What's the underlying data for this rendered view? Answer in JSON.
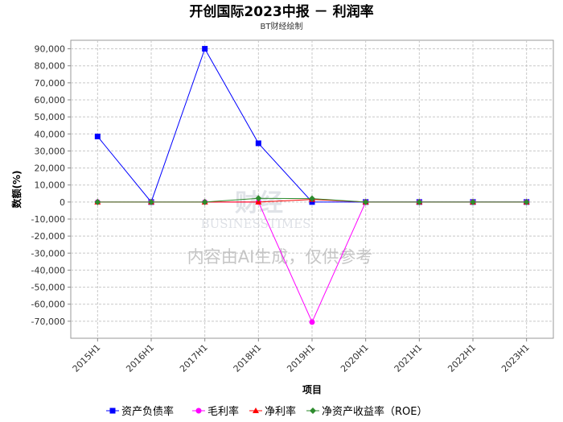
{
  "chart_data": {
    "type": "line",
    "title": "开创国际2023中报 － 利润率",
    "subtitle": "BT财经绘制",
    "xlabel": "项目",
    "ylabel": "数额(%)",
    "categories": [
      "2015H1",
      "2016H1",
      "2017H1",
      "2018H1",
      "2019H1",
      "2020H1",
      "2021H1",
      "2022H1",
      "2023H1"
    ],
    "ylim": [
      -80000,
      95000
    ],
    "yticks": [
      90000,
      80000,
      70000,
      60000,
      50000,
      40000,
      30000,
      20000,
      10000,
      0,
      -10000,
      -20000,
      -30000,
      -40000,
      -50000,
      -60000,
      -70000
    ],
    "ytick_labels": [
      "90,000",
      "80,000",
      "70,000",
      "60,000",
      "50,000",
      "40,000",
      "30,000",
      "20,000",
      "10,000",
      "0",
      "-10,000",
      "-20,000",
      "-30,000",
      "-40,000",
      "-50,000",
      "-60,000",
      "-70,000"
    ],
    "grid": true,
    "legend_position": "bottom",
    "series": [
      {
        "name": "资产负债率",
        "color": "#0000ff",
        "marker": "square",
        "values": [
          38500,
          10,
          90000,
          34500,
          20,
          20,
          20,
          20,
          20
        ]
      },
      {
        "name": "毛利率",
        "color": "#ff00ff",
        "marker": "circle",
        "values": [
          10,
          10,
          10,
          10,
          -70500,
          20,
          20,
          20,
          20
        ]
      },
      {
        "name": "净利率",
        "color": "#ff0000",
        "marker": "triangle",
        "values": [
          10,
          10,
          10,
          10,
          1500,
          10,
          10,
          10,
          10
        ]
      },
      {
        "name": "净资产收益率（ROE）",
        "color": "#2e8b2e",
        "marker": "diamond",
        "values": [
          10,
          10,
          10,
          2200,
          2000,
          10,
          10,
          10,
          10
        ]
      }
    ],
    "watermark": {
      "text": "内容由AI生成，仅供参考",
      "logo_cn": "财经",
      "logo_en": "BUSINESSTIMES"
    }
  }
}
